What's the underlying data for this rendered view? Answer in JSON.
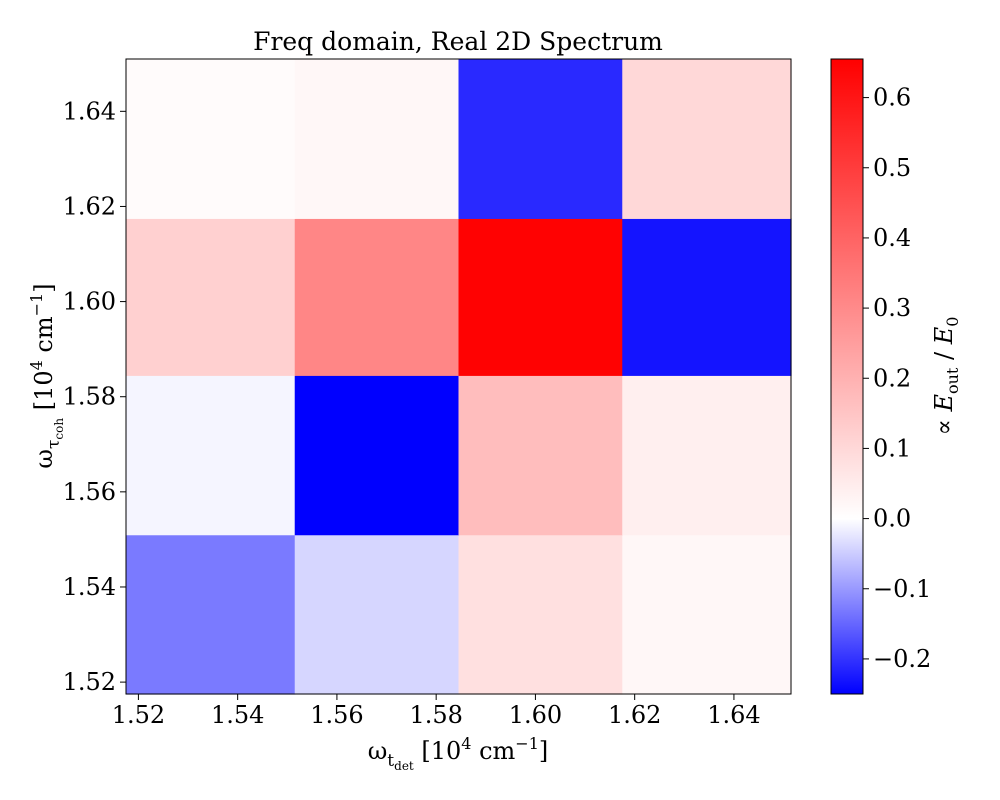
{
  "chart_data": {
    "type": "heatmap",
    "title": "Freq domain, Real 2D Spectrum",
    "xlabel": "ω_{t_det} [10^4 cm^-1]",
    "ylabel": "ω_{τ_coh} [10^4 cm^-1]",
    "colorbar_label": "∝ E_out / E_0",
    "x_centers": [
      1.52,
      1.555,
      1.59,
      1.625
    ],
    "y_centers": [
      1.535,
      1.567,
      1.6,
      1.635
    ],
    "x_edges": [
      1.5175,
      1.5515,
      1.5845,
      1.6175,
      1.6515
    ],
    "y_edges": [
      1.5175,
      1.551,
      1.5845,
      1.6175,
      1.651
    ],
    "xlim": [
      1.5175,
      1.6515
    ],
    "ylim": [
      1.5175,
      1.651
    ],
    "x_ticks": [
      "1.52",
      "1.54",
      "1.56",
      "1.58",
      "1.60",
      "1.62",
      "1.64"
    ],
    "y_ticks": [
      "1.52",
      "1.54",
      "1.56",
      "1.58",
      "1.60",
      "1.62",
      "1.64"
    ],
    "z_rows_bottom_to_top": [
      [
        -0.13,
        -0.04,
        0.08,
        0.02
      ],
      [
        -0.01,
        -0.25,
        0.17,
        0.04
      ],
      [
        0.12,
        0.31,
        0.65,
        -0.23
      ],
      [
        0.01,
        0.02,
        -0.21,
        0.1
      ]
    ],
    "colorbar": {
      "vmin": -0.25,
      "vmax": 0.655,
      "ticks": [
        -0.2,
        -0.1,
        0.0,
        0.1,
        0.2,
        0.3,
        0.4,
        0.5,
        0.6
      ],
      "tick_labels": [
        "−0.2",
        "−0.1",
        "0.0",
        "0.1",
        "0.2",
        "0.3",
        "0.4",
        "0.5",
        "0.6"
      ],
      "colormap": "bwr",
      "colors": {
        "negative": "#0000ff",
        "zero": "#ffffff",
        "positive": "#ff0000"
      }
    }
  }
}
